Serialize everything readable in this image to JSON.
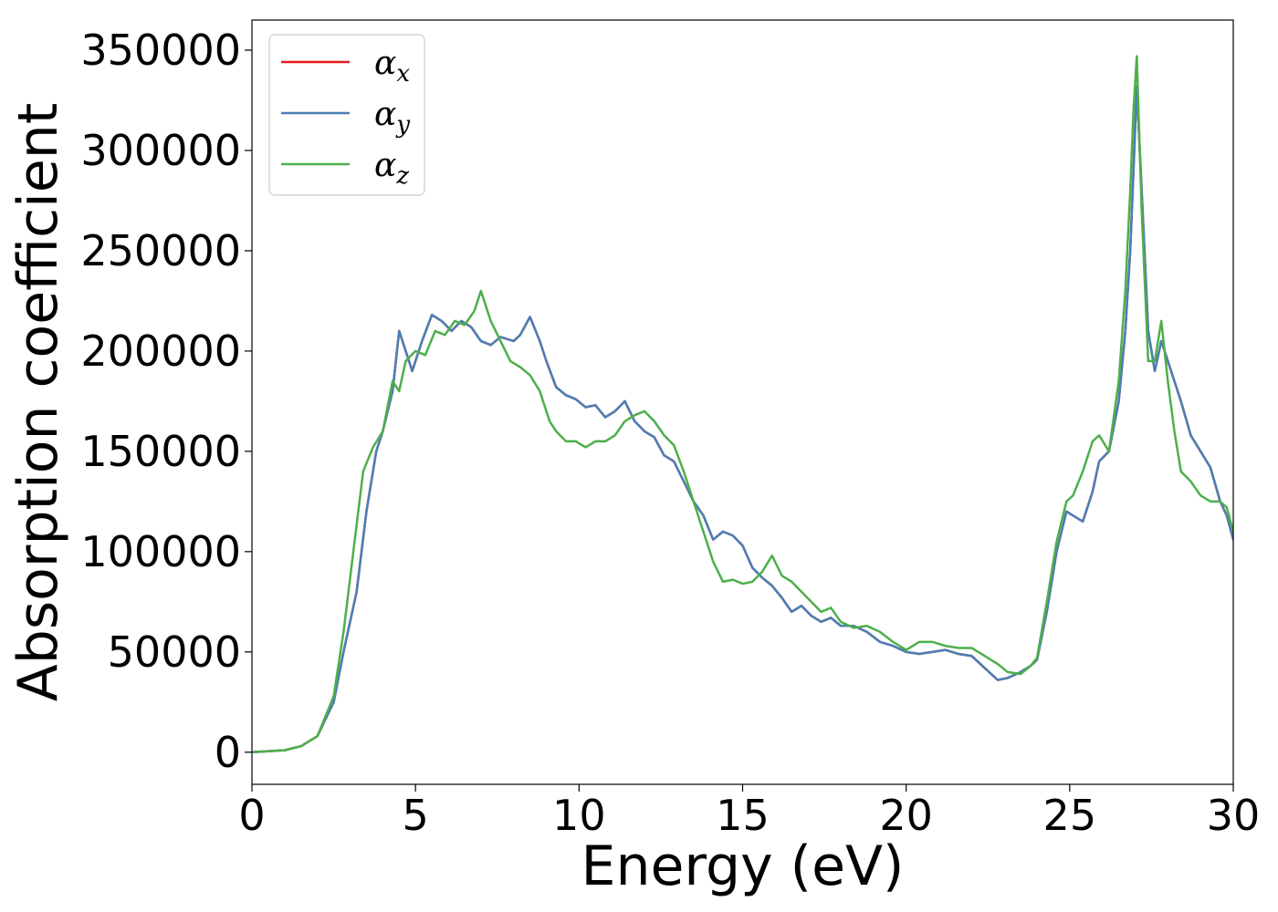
{
  "chart_data": {
    "type": "line",
    "xlabel": "Energy (eV)",
    "ylabel": "Absorption coefficient",
    "xlim": [
      0,
      30
    ],
    "ylim": [
      -16000,
      365000
    ],
    "xticks": [
      0,
      5,
      10,
      15,
      20,
      25,
      30
    ],
    "xtick_labels": [
      "0",
      "5",
      "10",
      "15",
      "20",
      "25",
      "30"
    ],
    "yticks": [
      0,
      50000,
      100000,
      150000,
      200000,
      250000,
      300000,
      350000
    ],
    "ytick_labels": [
      "0",
      "50000",
      "100000",
      "150000",
      "200000",
      "250000",
      "300000",
      "350000"
    ],
    "grid": false,
    "legend_position": "top-left",
    "series": [
      {
        "name": "α",
        "subscript": "x",
        "color": "#e41a1c",
        "x": [
          0,
          1,
          1.5,
          2,
          2.5,
          2.8,
          3.2,
          3.5,
          3.8,
          4.0,
          4.3,
          4.5,
          4.7,
          4.9,
          5.2,
          5.5,
          5.8,
          6.1,
          6.4,
          6.7,
          7.0,
          7.3,
          7.6,
          8.0,
          8.2,
          8.5,
          8.8,
          9.0,
          9.3,
          9.6,
          9.9,
          10.2,
          10.5,
          10.8,
          11.1,
          11.4,
          11.7,
          12.0,
          12.3,
          12.6,
          12.9,
          13.2,
          13.5,
          13.8,
          14.1,
          14.4,
          14.7,
          15.0,
          15.3,
          15.6,
          15.9,
          16.2,
          16.5,
          16.8,
          17.1,
          17.4,
          17.7,
          18.0,
          18.4,
          18.8,
          19.2,
          19.6,
          20.0,
          20.4,
          20.8,
          21.2,
          21.6,
          22.0,
          22.4,
          22.8,
          23.1,
          23.5,
          23.8,
          24.0,
          24.3,
          24.6,
          24.9,
          25.1,
          25.4,
          25.7,
          25.9,
          26.2,
          26.5,
          26.7,
          26.85,
          26.95,
          27.05,
          27.2,
          27.4,
          27.6,
          27.8,
          28.0,
          28.2,
          28.4,
          28.7,
          29.0,
          29.3,
          29.6,
          29.8,
          30.0
        ],
        "y": [
          0,
          1000,
          3000,
          8000,
          25000,
          50000,
          80000,
          120000,
          150000,
          160000,
          180000,
          210000,
          200000,
          190000,
          205000,
          218000,
          215000,
          210000,
          215000,
          212000,
          205000,
          203000,
          207000,
          205000,
          208000,
          217000,
          205000,
          195000,
          182000,
          178000,
          176000,
          172000,
          173000,
          167000,
          170000,
          175000,
          165000,
          160000,
          157000,
          148000,
          145000,
          135000,
          125000,
          118000,
          106000,
          110000,
          108000,
          103000,
          92000,
          87000,
          83000,
          77000,
          70000,
          73000,
          68000,
          65000,
          67000,
          63000,
          63000,
          60000,
          55000,
          53000,
          50000,
          49000,
          50000,
          51000,
          49000,
          48000,
          42000,
          36000,
          37000,
          40000,
          43000,
          46000,
          70000,
          100000,
          120000,
          118000,
          115000,
          130000,
          145000,
          150000,
          175000,
          210000,
          250000,
          290000,
          332000,
          280000,
          210000,
          190000,
          205000,
          195000,
          185000,
          175000,
          158000,
          150000,
          142000,
          125000,
          118000,
          106000
        ]
      },
      {
        "name": "α",
        "subscript": "y",
        "color": "#4a7fb5",
        "x": [
          0,
          1,
          1.5,
          2,
          2.5,
          2.8,
          3.2,
          3.5,
          3.8,
          4.0,
          4.3,
          4.5,
          4.7,
          4.9,
          5.2,
          5.5,
          5.8,
          6.1,
          6.4,
          6.7,
          7.0,
          7.3,
          7.6,
          8.0,
          8.2,
          8.5,
          8.8,
          9.0,
          9.3,
          9.6,
          9.9,
          10.2,
          10.5,
          10.8,
          11.1,
          11.4,
          11.7,
          12.0,
          12.3,
          12.6,
          12.9,
          13.2,
          13.5,
          13.8,
          14.1,
          14.4,
          14.7,
          15.0,
          15.3,
          15.6,
          15.9,
          16.2,
          16.5,
          16.8,
          17.1,
          17.4,
          17.7,
          18.0,
          18.4,
          18.8,
          19.2,
          19.6,
          20.0,
          20.4,
          20.8,
          21.2,
          21.6,
          22.0,
          22.4,
          22.8,
          23.1,
          23.5,
          23.8,
          24.0,
          24.3,
          24.6,
          24.9,
          25.1,
          25.4,
          25.7,
          25.9,
          26.2,
          26.5,
          26.7,
          26.85,
          26.95,
          27.05,
          27.2,
          27.4,
          27.6,
          27.8,
          28.0,
          28.2,
          28.4,
          28.7,
          29.0,
          29.3,
          29.6,
          29.8,
          30.0
        ],
        "y": [
          0,
          1000,
          3000,
          8000,
          25000,
          50000,
          80000,
          120000,
          150000,
          160000,
          180000,
          210000,
          200000,
          190000,
          205000,
          218000,
          215000,
          210000,
          215000,
          212000,
          205000,
          203000,
          207000,
          205000,
          208000,
          217000,
          205000,
          195000,
          182000,
          178000,
          176000,
          172000,
          173000,
          167000,
          170000,
          175000,
          165000,
          160000,
          157000,
          148000,
          145000,
          135000,
          125000,
          118000,
          106000,
          110000,
          108000,
          103000,
          92000,
          87000,
          83000,
          77000,
          70000,
          73000,
          68000,
          65000,
          67000,
          63000,
          63000,
          60000,
          55000,
          53000,
          50000,
          49000,
          50000,
          51000,
          49000,
          48000,
          42000,
          36000,
          37000,
          40000,
          43000,
          46000,
          70000,
          100000,
          120000,
          118000,
          115000,
          130000,
          145000,
          150000,
          175000,
          210000,
          250000,
          290000,
          332000,
          280000,
          210000,
          190000,
          205000,
          195000,
          185000,
          175000,
          158000,
          150000,
          142000,
          125000,
          118000,
          106000
        ]
      },
      {
        "name": "α",
        "subscript": "z",
        "color": "#4daf4a",
        "x": [
          0,
          1,
          1.5,
          2,
          2.5,
          2.8,
          3.1,
          3.4,
          3.7,
          4.0,
          4.3,
          4.5,
          4.7,
          5.0,
          5.3,
          5.6,
          5.9,
          6.2,
          6.5,
          6.8,
          7.0,
          7.3,
          7.6,
          7.9,
          8.2,
          8.5,
          8.8,
          9.1,
          9.3,
          9.6,
          9.9,
          10.2,
          10.5,
          10.8,
          11.1,
          11.4,
          11.7,
          12.0,
          12.3,
          12.6,
          12.9,
          13.2,
          13.5,
          13.8,
          14.1,
          14.4,
          14.7,
          15.0,
          15.3,
          15.6,
          15.9,
          16.2,
          16.5,
          16.8,
          17.1,
          17.4,
          17.7,
          18.0,
          18.4,
          18.8,
          19.2,
          19.6,
          20.0,
          20.4,
          20.8,
          21.2,
          21.6,
          22.0,
          22.4,
          22.8,
          23.1,
          23.5,
          23.8,
          24.0,
          24.3,
          24.6,
          24.9,
          25.1,
          25.4,
          25.7,
          25.9,
          26.2,
          26.5,
          26.7,
          26.85,
          26.95,
          27.05,
          27.2,
          27.4,
          27.6,
          27.8,
          28.0,
          28.2,
          28.4,
          28.7,
          29.0,
          29.3,
          29.6,
          29.8,
          30.0
        ],
        "y": [
          0,
          1000,
          3000,
          8000,
          28000,
          60000,
          100000,
          140000,
          152000,
          160000,
          185000,
          180000,
          195000,
          200000,
          198000,
          210000,
          208000,
          215000,
          213000,
          220000,
          230000,
          215000,
          205000,
          195000,
          192000,
          188000,
          180000,
          165000,
          160000,
          155000,
          155000,
          152000,
          155000,
          155000,
          158000,
          165000,
          168000,
          170000,
          165000,
          158000,
          153000,
          140000,
          125000,
          110000,
          95000,
          85000,
          86000,
          84000,
          85000,
          90000,
          98000,
          88000,
          85000,
          80000,
          75000,
          70000,
          72000,
          65000,
          62000,
          63000,
          60000,
          55000,
          51000,
          55000,
          55000,
          53000,
          52000,
          52000,
          48000,
          44000,
          40000,
          39000,
          43000,
          47000,
          75000,
          105000,
          125000,
          128000,
          140000,
          155000,
          158000,
          150000,
          185000,
          230000,
          280000,
          320000,
          347000,
          270000,
          195000,
          195000,
          215000,
          185000,
          160000,
          140000,
          135000,
          128000,
          125000,
          125000,
          122000,
          110000
        ]
      }
    ]
  }
}
